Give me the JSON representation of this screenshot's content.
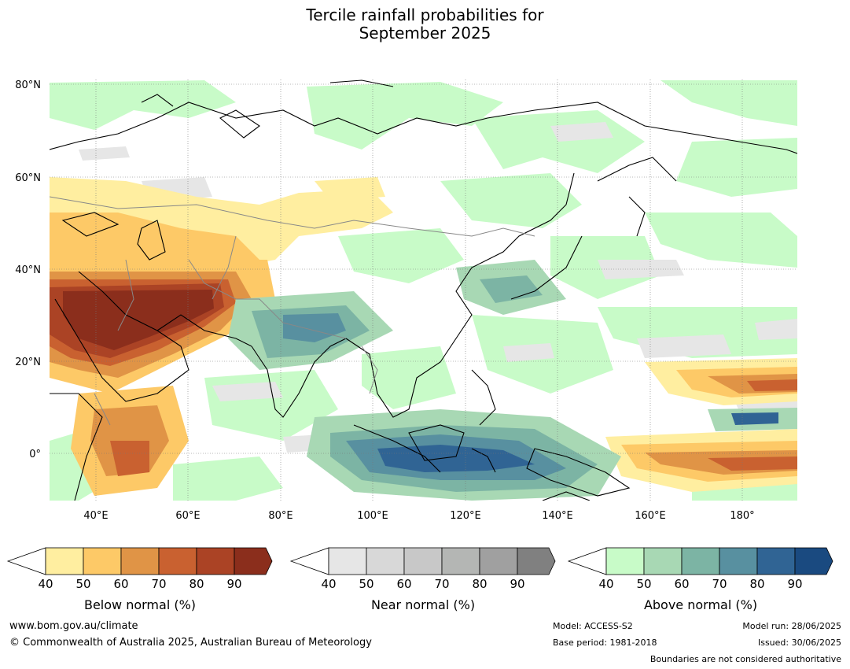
{
  "title_line1": "Tercile rainfall probabilities for",
  "title_line2": "September 2025",
  "lat_labels": [
    "80°N",
    "60°N",
    "40°N",
    "20°N",
    "0°"
  ],
  "lon_labels": [
    "40°E",
    "60°E",
    "80°E",
    "100°E",
    "120°E",
    "140°E",
    "160°E",
    "180°"
  ],
  "colorbars": [
    {
      "label": "Below normal (%)",
      "ticks": [
        "40",
        "50",
        "60",
        "70",
        "80",
        "90"
      ],
      "colors": [
        "#ffeea0",
        "#fdc967",
        "#e09446",
        "#c96130",
        "#ab4325",
        "#8b2e1c"
      ]
    },
    {
      "label": "Near normal (%)",
      "ticks": [
        "40",
        "50",
        "60",
        "70",
        "80",
        "90"
      ],
      "colors": [
        "#e6e6e6",
        "#d8d8d8",
        "#c8c8c8",
        "#b4b6b4",
        "#a0a0a0",
        "#808080"
      ]
    },
    {
      "label": "Above normal (%)",
      "ticks": [
        "40",
        "50",
        "60",
        "70",
        "80",
        "90"
      ],
      "colors": [
        "#c8fbc8",
        "#a8d8b4",
        "#7cb4a4",
        "#5890a0",
        "#306494",
        "#1a4a80"
      ]
    }
  ],
  "footer": {
    "website": "www.bom.gov.au/climate",
    "copyright": "© Commonwealth of Australia 2025, Australian Bureau of Meteorology",
    "model": "Model: ACCESS-S2",
    "base_period": "Base period: 1981-2018",
    "model_run": "Model run: 28/06/2025",
    "issued": "Issued: 30/06/2025",
    "disclaimer": "Boundaries are not considered authoritative"
  }
}
